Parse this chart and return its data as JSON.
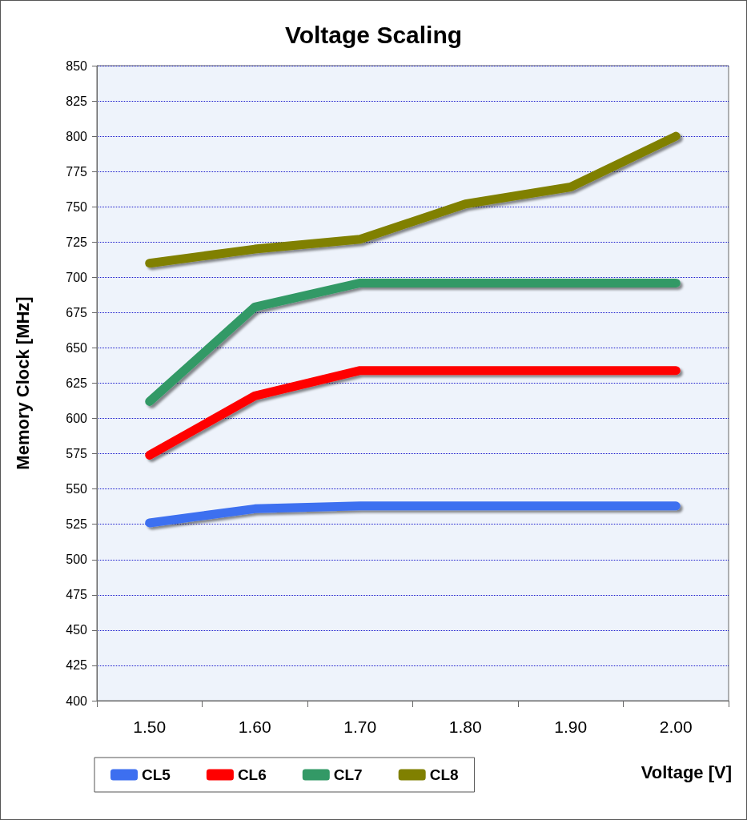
{
  "chart_data": {
    "type": "line",
    "title": "Voltage Scaling",
    "xlabel": "Voltage [V]",
    "ylabel": "Memory Clock [MHz]",
    "categories": [
      "1.50",
      "1.60",
      "1.70",
      "1.80",
      "1.90",
      "2.00"
    ],
    "series": [
      {
        "name": "CL5",
        "color": "#3d6ff0",
        "values": [
          526,
          536,
          538,
          538,
          538,
          538
        ]
      },
      {
        "name": "CL6",
        "color": "#ff0000",
        "values": [
          574,
          616,
          634,
          634,
          634,
          634
        ]
      },
      {
        "name": "CL7",
        "color": "#339966",
        "values": [
          612,
          679,
          696,
          696,
          696,
          696
        ]
      },
      {
        "name": "CL8",
        "color": "#808000",
        "values": [
          710,
          720,
          727,
          752,
          764,
          800
        ]
      }
    ],
    "ylim": [
      400,
      850
    ],
    "yticks": [
      400,
      425,
      450,
      475,
      500,
      525,
      550,
      575,
      600,
      625,
      650,
      675,
      700,
      725,
      750,
      775,
      800,
      825,
      850
    ],
    "grid": "y",
    "legend": "bottom left",
    "line_style": "solid"
  }
}
